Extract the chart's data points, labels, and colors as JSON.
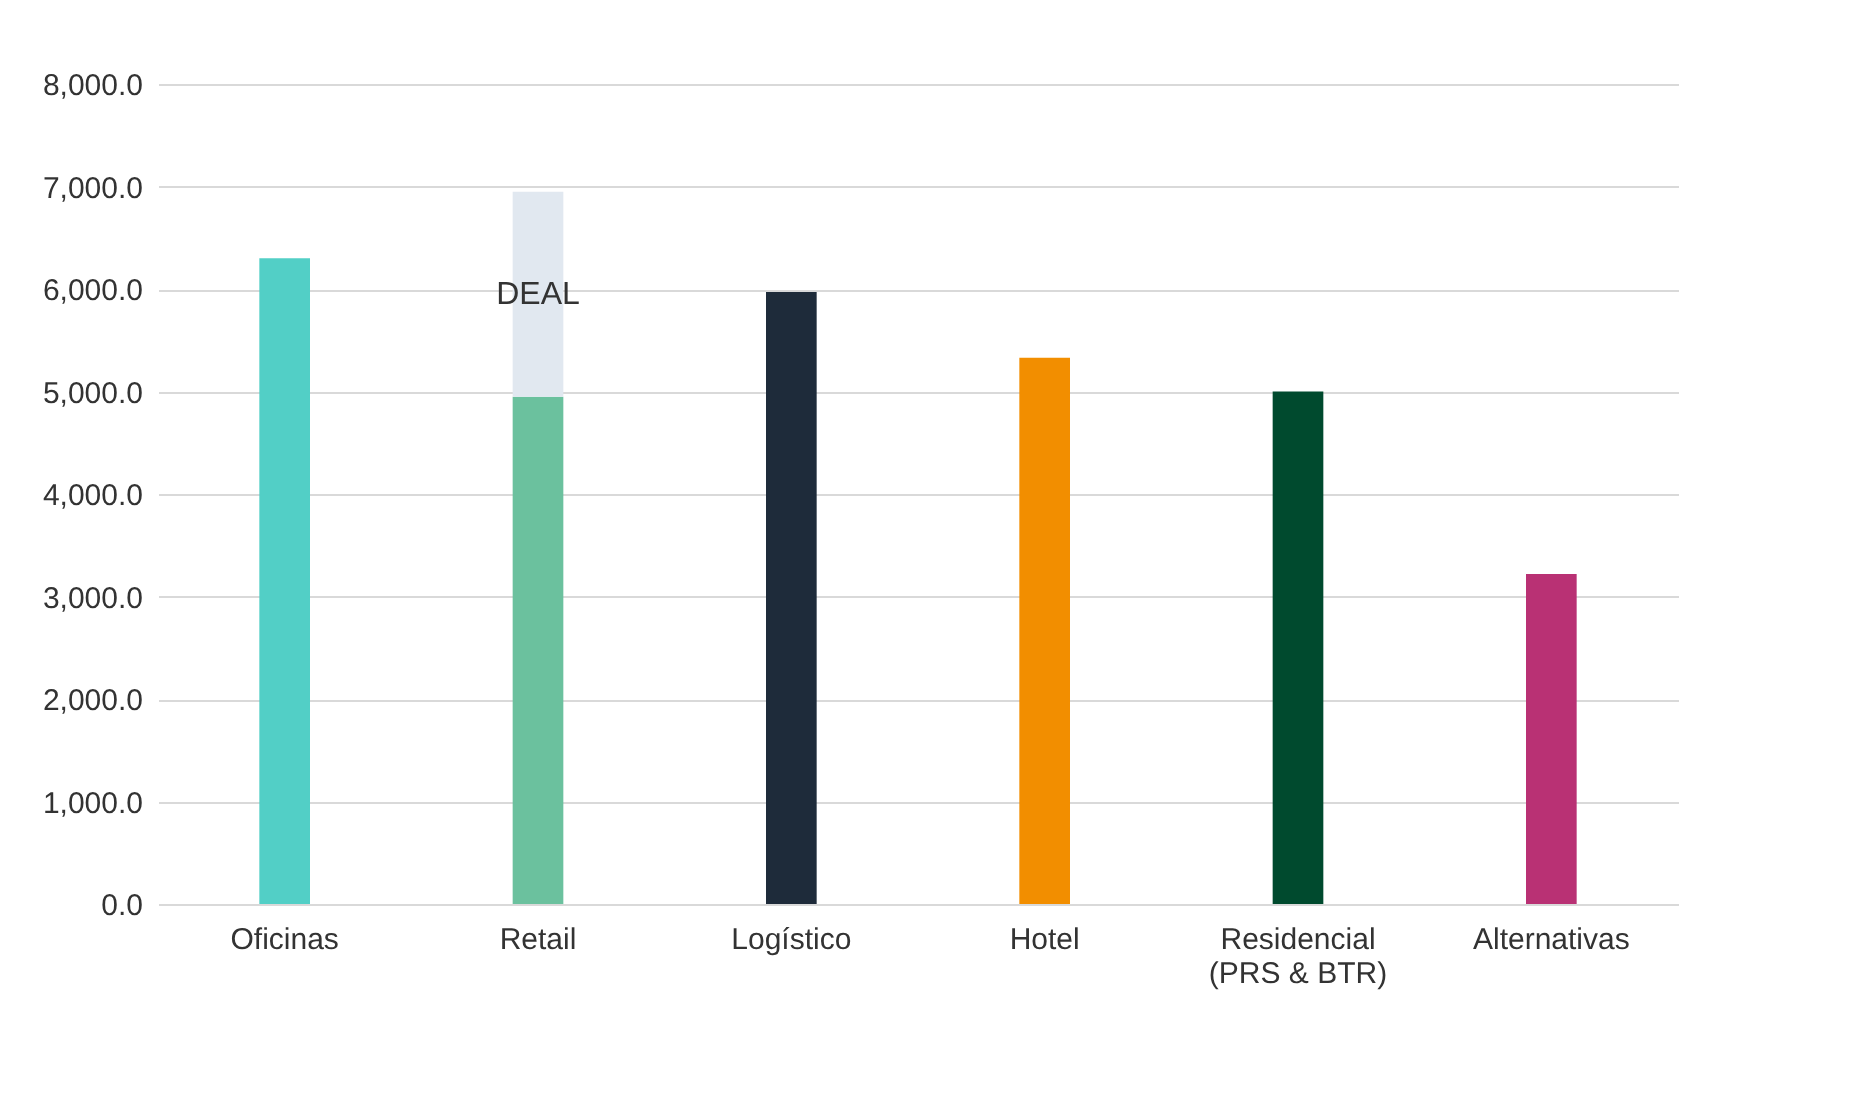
{
  "chart_data": {
    "type": "bar",
    "stacked": true,
    "categories": [
      "Oficinas",
      "Retail",
      "Logístico",
      "Hotel",
      "Residencial\n(PRS & BTR)",
      "Alternativas"
    ],
    "series": [
      {
        "colors": [
          "#52cfc6",
          "#6bc19e",
          "#1e2b3a",
          "#f28e00",
          "#004a2e",
          "#b93174"
        ],
        "values": [
          6300,
          4950,
          5970,
          5330,
          5000,
          3220
        ]
      },
      {
        "colors": [
          null,
          "#e1e8f0",
          null,
          null,
          null,
          null
        ],
        "values": [
          null,
          2000,
          null,
          null,
          null,
          null
        ]
      }
    ],
    "ylim": [
      0,
      8000
    ],
    "yticks": [
      {
        "value": 0,
        "label": "0.0"
      },
      {
        "value": 1000,
        "label": "1,000.0"
      },
      {
        "value": 2000,
        "label": "2,000.0"
      },
      {
        "value": 3000,
        "label": "3,000.0"
      },
      {
        "value": 4000,
        "label": "4,000.0"
      },
      {
        "value": 5000,
        "label": "5,000.0"
      },
      {
        "value": 6000,
        "label": "6,000.0"
      },
      {
        "value": 7000,
        "label": "7,000.0"
      },
      {
        "value": 8000,
        "label": "8,000.0"
      }
    ],
    "grid": "y",
    "legend": false,
    "annotations": [
      "DEAL"
    ]
  }
}
